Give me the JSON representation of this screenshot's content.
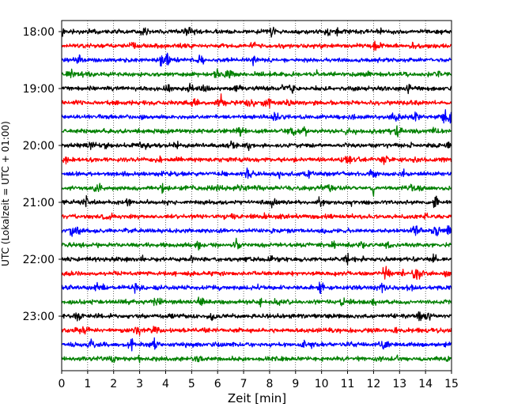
{
  "chart_data": {
    "type": "line",
    "title": "",
    "xlabel": "Zeit  [min]",
    "ylabel": "UTC (Lokalzeit = UTC + 01:00)",
    "xlim": [
      0,
      15
    ],
    "x_ticks": [
      "0",
      "1",
      "2",
      "3",
      "4",
      "5",
      "6",
      "7",
      "8",
      "9",
      "10",
      "11",
      "12",
      "13",
      "14",
      "15"
    ],
    "y_ticks": [
      "18:00",
      "19:00",
      "20:00",
      "21:00",
      "22:00",
      "23:00"
    ],
    "grid": "vertical-dotted",
    "trace_colors": [
      "#000000",
      "#ff0000",
      "#0000ff",
      "#008000"
    ],
    "traces": [
      {
        "start": "18:00",
        "color": "#000000"
      },
      {
        "start": "18:15",
        "color": "#ff0000"
      },
      {
        "start": "18:30",
        "color": "#0000ff"
      },
      {
        "start": "18:45",
        "color": "#008000"
      },
      {
        "start": "19:00",
        "color": "#000000"
      },
      {
        "start": "19:15",
        "color": "#ff0000"
      },
      {
        "start": "19:30",
        "color": "#0000ff"
      },
      {
        "start": "19:45",
        "color": "#008000"
      },
      {
        "start": "20:00",
        "color": "#000000"
      },
      {
        "start": "20:15",
        "color": "#ff0000"
      },
      {
        "start": "20:30",
        "color": "#0000ff"
      },
      {
        "start": "20:45",
        "color": "#008000"
      },
      {
        "start": "21:00",
        "color": "#000000"
      },
      {
        "start": "21:15",
        "color": "#ff0000"
      },
      {
        "start": "21:30",
        "color": "#0000ff"
      },
      {
        "start": "21:45",
        "color": "#008000"
      },
      {
        "start": "22:00",
        "color": "#000000"
      },
      {
        "start": "22:15",
        "color": "#ff0000"
      },
      {
        "start": "22:30",
        "color": "#0000ff"
      },
      {
        "start": "22:45",
        "color": "#008000"
      },
      {
        "start": "23:00",
        "color": "#000000"
      },
      {
        "start": "23:15",
        "color": "#ff0000"
      },
      {
        "start": "23:30",
        "color": "#0000ff"
      },
      {
        "start": "23:45",
        "color": "#008000"
      }
    ]
  }
}
